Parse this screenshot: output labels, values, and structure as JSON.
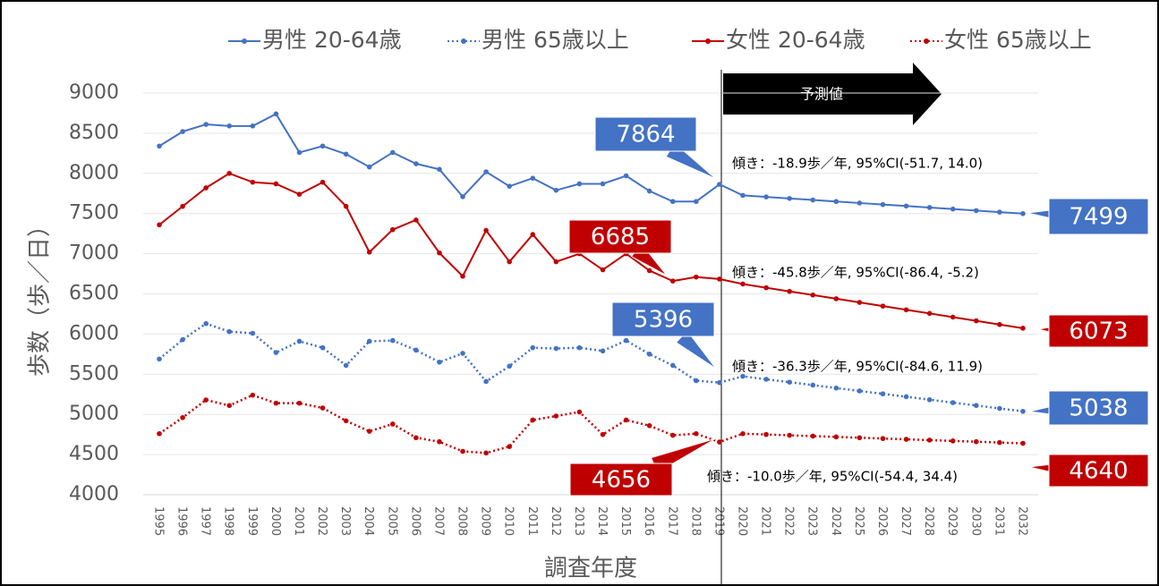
{
  "chart_data": {
    "type": "line",
    "y_label": "歩数（歩／日）",
    "x_label": "調査年度",
    "forecast_label": "予測値",
    "categories": [
      "1995",
      "1996",
      "1997",
      "1998",
      "1999",
      "2000",
      "2001",
      "2002",
      "2003",
      "2004",
      "2005",
      "2006",
      "2007",
      "2008",
      "2009",
      "2010",
      "2011",
      "2012",
      "2013",
      "2014",
      "2015",
      "2016",
      "2017",
      "2018",
      "2019",
      "2020",
      "2021",
      "2022",
      "2023",
      "2024",
      "2025",
      "2026",
      "2027",
      "2028",
      "2029",
      "2030",
      "2031",
      "2032"
    ],
    "series": [
      {
        "name": "男性 20-64歳",
        "color": "#4472c4",
        "style": "solid",
        "values": [
          8340,
          8520,
          8610,
          8590,
          8590,
          8740,
          8260,
          8340,
          8240,
          8080,
          8260,
          8120,
          8050,
          7710,
          8020,
          7840,
          7940,
          7790,
          7870,
          7870,
          7970,
          7780,
          7650,
          7650,
          7864,
          7726,
          7707,
          7688,
          7669,
          7650,
          7631,
          7612,
          7594,
          7575,
          7556,
          7537,
          7518,
          7499
        ]
      },
      {
        "name": "男性 65歳以上",
        "color": "#4472c4",
        "style": "dotted",
        "values": [
          5690,
          5930,
          6130,
          6030,
          6010,
          5770,
          5910,
          5830,
          5610,
          5910,
          5920,
          5800,
          5650,
          5760,
          5410,
          5600,
          5830,
          5820,
          5830,
          5790,
          5920,
          5750,
          5610,
          5420,
          5396,
          5474,
          5437,
          5401,
          5365,
          5328,
          5292,
          5256,
          5220,
          5183,
          5147,
          5111,
          5074,
          5038
        ]
      },
      {
        "name": "女性 20-64歳",
        "color": "#c00000",
        "style": "solid",
        "values": [
          7360,
          7590,
          7820,
          8000,
          7890,
          7870,
          7740,
          7890,
          7590,
          7020,
          7300,
          7420,
          7010,
          6720,
          7290,
          6900,
          7240,
          6900,
          7000,
          6800,
          7000,
          6790,
          6660,
          6710,
          6685,
          6623,
          6577,
          6531,
          6486,
          6440,
          6394,
          6348,
          6302,
          6257,
          6211,
          6165,
          6119,
          6073
        ]
      },
      {
        "name": "女性 65歳以上",
        "color": "#c00000",
        "style": "dotted",
        "values": [
          4760,
          4960,
          5180,
          5110,
          5240,
          5140,
          5140,
          5080,
          4920,
          4790,
          4880,
          4710,
          4660,
          4540,
          4520,
          4600,
          4930,
          4980,
          5030,
          4750,
          4930,
          4860,
          4740,
          4760,
          4656,
          4760,
          4750,
          4740,
          4730,
          4720,
          4710,
          4700,
          4690,
          4680,
          4670,
          4660,
          4650,
          4640
        ]
      }
    ],
    "annotations": [
      "傾き：-18.9歩／年, 95%CI(-51.7, 14.0)",
      "傾き：-45.8歩／年, 95%CI(-86.4, -5.2)",
      "傾き：-36.3歩／年, 95%CI(-84.6, 11.9)",
      "傾き：-10.0歩／年, 95%CI(-54.4, 34.4)"
    ],
    "ylim": [
      4000,
      9000
    ],
    "yticks": [
      4000,
      4500,
      5000,
      5500,
      6000,
      6500,
      7000,
      7500,
      8000,
      8500,
      9000
    ],
    "grid": true,
    "legend": "top"
  }
}
